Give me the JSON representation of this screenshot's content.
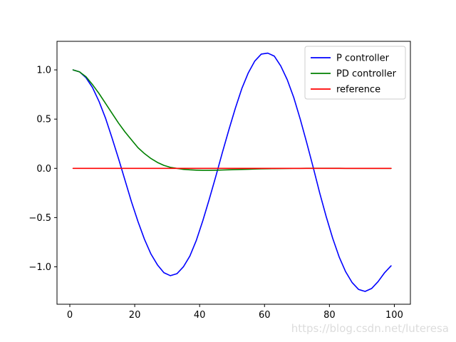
{
  "chart_data": {
    "type": "line",
    "title": "",
    "xlabel": "",
    "ylabel": "",
    "xlim": [
      -3.95,
      104.95
    ],
    "ylim": [
      -1.38,
      1.29
    ],
    "xticks": [
      0,
      20,
      40,
      60,
      80,
      100
    ],
    "xtick_labels": [
      "0",
      "20",
      "40",
      "60",
      "80",
      "100"
    ],
    "yticks": [
      1.0,
      0.5,
      0.0,
      -0.5,
      -1.0
    ],
    "ytick_labels": [
      "1.0",
      "0.5",
      "0.0",
      "−0.5",
      "−1.0"
    ],
    "grid": false,
    "legend_position": "upper right",
    "series": [
      {
        "name": "P controller",
        "color": "#0000ff",
        "x": [
          1,
          3,
          5,
          7,
          9,
          11,
          13,
          15,
          17,
          19,
          21,
          23,
          25,
          27,
          29,
          31,
          33,
          35,
          37,
          39,
          41,
          43,
          45,
          47,
          49,
          51,
          53,
          55,
          57,
          59,
          61,
          63,
          65,
          67,
          69,
          71,
          73,
          75,
          77,
          79,
          81,
          83,
          85,
          87,
          89,
          91,
          93,
          95,
          97,
          99
        ],
        "y": [
          1.0,
          0.98,
          0.92,
          0.82,
          0.68,
          0.51,
          0.31,
          0.1,
          -0.12,
          -0.34,
          -0.54,
          -0.72,
          -0.87,
          -0.98,
          -1.06,
          -1.09,
          -1.07,
          -1.0,
          -0.89,
          -0.73,
          -0.53,
          -0.31,
          -0.08,
          0.16,
          0.39,
          0.61,
          0.81,
          0.97,
          1.09,
          1.16,
          1.17,
          1.14,
          1.04,
          0.9,
          0.72,
          0.5,
          0.26,
          0.01,
          -0.25,
          -0.49,
          -0.71,
          -0.9,
          -1.05,
          -1.16,
          -1.23,
          -1.25,
          -1.22,
          -1.15,
          -1.06,
          -0.99
        ]
      },
      {
        "name": "PD controller",
        "color": "#008000",
        "x": [
          1,
          3,
          5,
          7,
          9,
          11,
          13,
          15,
          17,
          19,
          21,
          23,
          25,
          27,
          29,
          31,
          33,
          35,
          37,
          39,
          41,
          43,
          45,
          47,
          49,
          51,
          53,
          55,
          57,
          59,
          61,
          63,
          65,
          67,
          69,
          71,
          73,
          75,
          77,
          79,
          81,
          83,
          85,
          87,
          89,
          91,
          93,
          95,
          97,
          99
        ],
        "y": [
          1.0,
          0.98,
          0.93,
          0.85,
          0.76,
          0.66,
          0.56,
          0.46,
          0.37,
          0.29,
          0.21,
          0.15,
          0.1,
          0.06,
          0.03,
          0.01,
          0.0,
          -0.01,
          -0.015,
          -0.018,
          -0.02,
          -0.02,
          -0.019,
          -0.017,
          -0.015,
          -0.013,
          -0.011,
          -0.009,
          -0.007,
          -0.005,
          -0.004,
          -0.003,
          -0.002,
          -0.001,
          0.0,
          0.0,
          0.001,
          0.001,
          0.001,
          0.001,
          0.001,
          0.001,
          0.0,
          0.0,
          0.0,
          0.0,
          0.0,
          0.0,
          0.0,
          0.0
        ]
      },
      {
        "name": "reference",
        "color": "#ff0000",
        "x": [
          1,
          99
        ],
        "y": [
          0,
          0
        ]
      }
    ]
  },
  "watermark": "https://blog.csdn.net/luteresa"
}
